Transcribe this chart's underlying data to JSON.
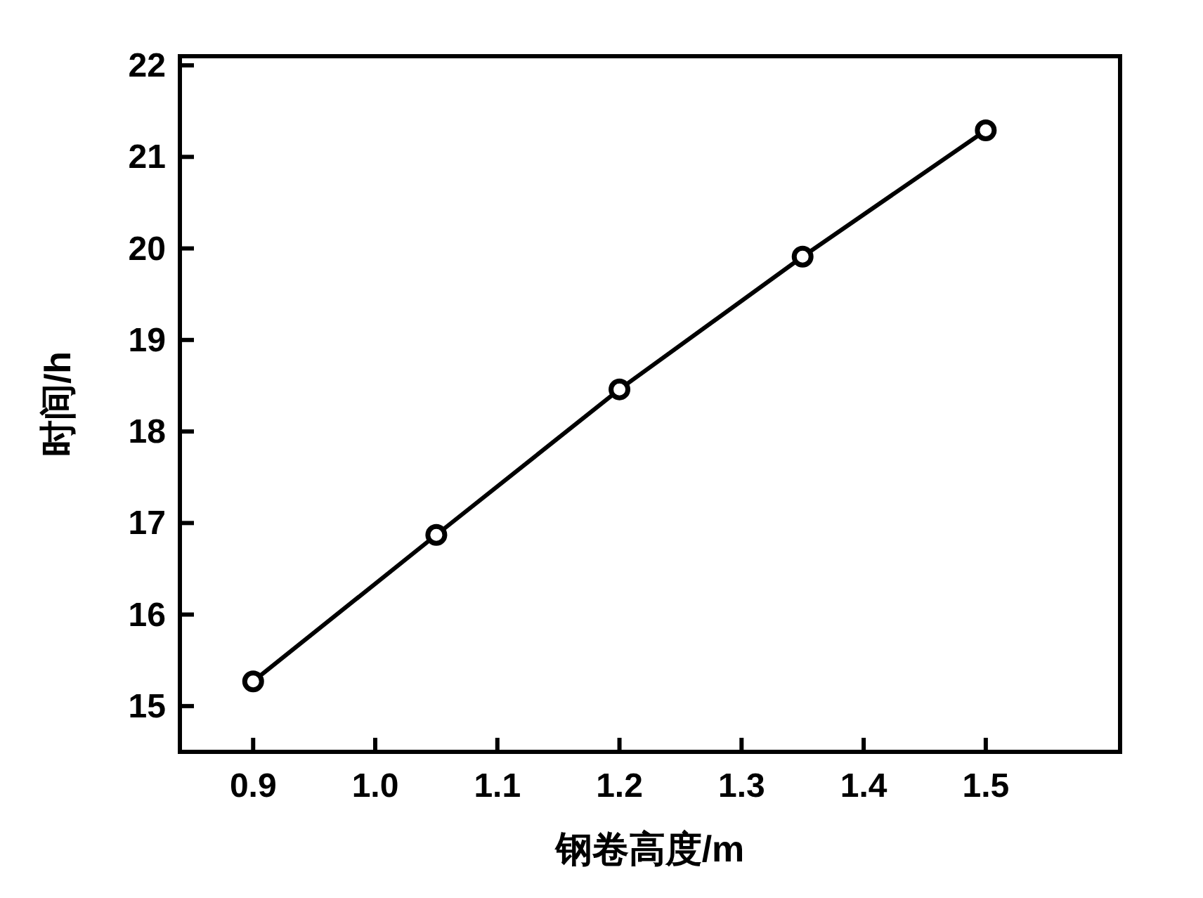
{
  "chart_data": {
    "type": "line",
    "xlabel": "钢卷高度/m",
    "ylabel": "时间/h",
    "x": [
      0.9,
      1.05,
      1.2,
      1.35,
      1.5
    ],
    "values": [
      15.27,
      16.87,
      18.46,
      19.91,
      21.29
    ],
    "color": "#000000",
    "marker": "circle",
    "line_style": "solid",
    "xlim": [
      0.84,
      1.61
    ],
    "ylim": [
      14.5,
      22.1
    ],
    "xticks": [
      0.9,
      {
        "value": 1,
        "label": "1.0"
      },
      1.1,
      1.2,
      1.3,
      1.4,
      1.5
    ],
    "yticks": [
      15,
      16,
      17,
      18,
      19,
      20,
      21,
      22
    ]
  }
}
